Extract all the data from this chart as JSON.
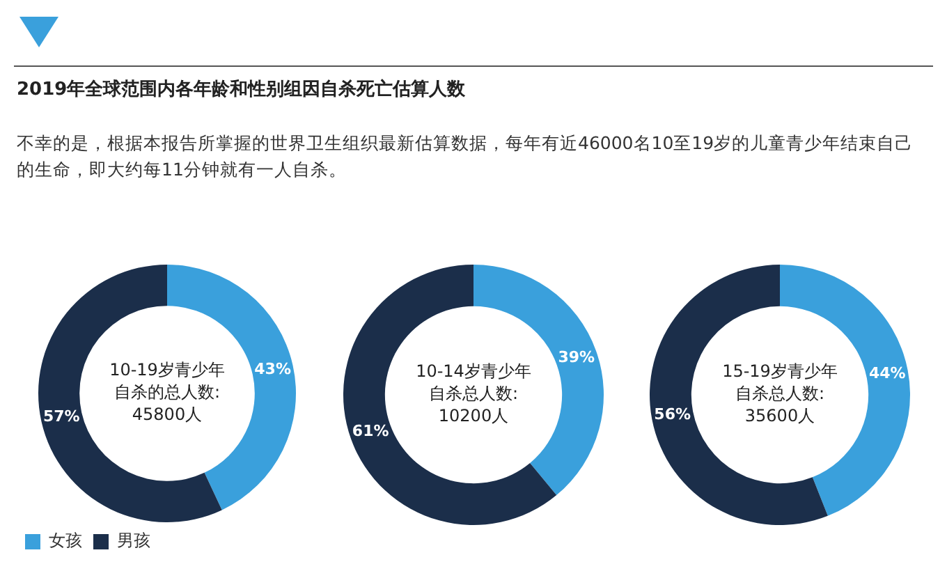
{
  "chart_data": [
    {
      "type": "donut",
      "title": "2019年全球范围内各年龄和性别组因自杀死亡估算人数",
      "subtitle": "不幸的是，根据本报告所掌握的世界卫生组织最新估算数据，每年有近46000名10至19岁的儿童青少年结束自己的生命，即大约每11分钟就有一人自杀。",
      "categories": [
        "女孩",
        "男孩"
      ],
      "values": [
        43,
        57
      ],
      "colors": [
        "#3aa0dc",
        "#1b2e4a"
      ],
      "value_labels": [
        "43%",
        "57%"
      ],
      "annotations": [
        "10-19岁青少年",
        "自杀的总人数:",
        "45800人"
      ],
      "legend": "bottom left"
    },
    {
      "type": "donut",
      "categories": [
        null,
        null
      ],
      "values": [
        39,
        61
      ],
      "colors": [
        "#3aa0dc",
        "#1b2e4a"
      ],
      "value_labels": [
        "39%",
        "61%"
      ],
      "annotations": [
        "10-14岁青少年",
        "自杀总人数:",
        "10200人"
      ]
    },
    {
      "type": "donut",
      "categories": [
        null,
        null
      ],
      "values": [
        44,
        56
      ],
      "colors": [
        "#3aa0dc",
        "#1b2e4a"
      ],
      "value_labels": [
        "44%",
        "56%"
      ],
      "annotations": [
        "15-19岁青少年",
        "自杀总人数:",
        "35600人"
      ]
    }
  ]
}
